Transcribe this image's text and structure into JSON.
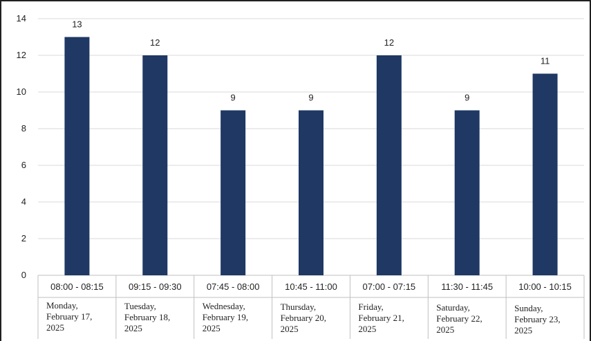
{
  "chart_data": {
    "type": "bar",
    "categories": [
      {
        "time": "08:00 - 08:15",
        "date": [
          "Monday,",
          "February 17,",
          "2025"
        ]
      },
      {
        "time": "09:15 - 09:30",
        "date": [
          "Tuesday,",
          "February 18,",
          "2025"
        ]
      },
      {
        "time": "07:45 - 08:00",
        "date": [
          "Wednesday,",
          "February 19,",
          "2025"
        ]
      },
      {
        "time": "10:45 - 11:00",
        "date": [
          "Thursday,",
          "February 20,",
          "2025"
        ]
      },
      {
        "time": "07:00 - 07:15",
        "date": [
          "Friday,",
          "February 21,",
          "2025"
        ]
      },
      {
        "time": "11:30 - 11:45",
        "date": [
          "Saturday,",
          "February 22,",
          "2025"
        ]
      },
      {
        "time": "10:00 - 10:15",
        "date": [
          "Sunday,",
          "February 23,",
          "2025"
        ]
      }
    ],
    "values": [
      13,
      12,
      9,
      9,
      12,
      9,
      11
    ],
    "ylim": [
      0,
      14
    ],
    "yticks": [
      0,
      2,
      4,
      6,
      8,
      10,
      12,
      14
    ],
    "grid": true,
    "data_labels": true,
    "bar_color": "#1f3864",
    "grid_color": "#d9d9d9"
  }
}
